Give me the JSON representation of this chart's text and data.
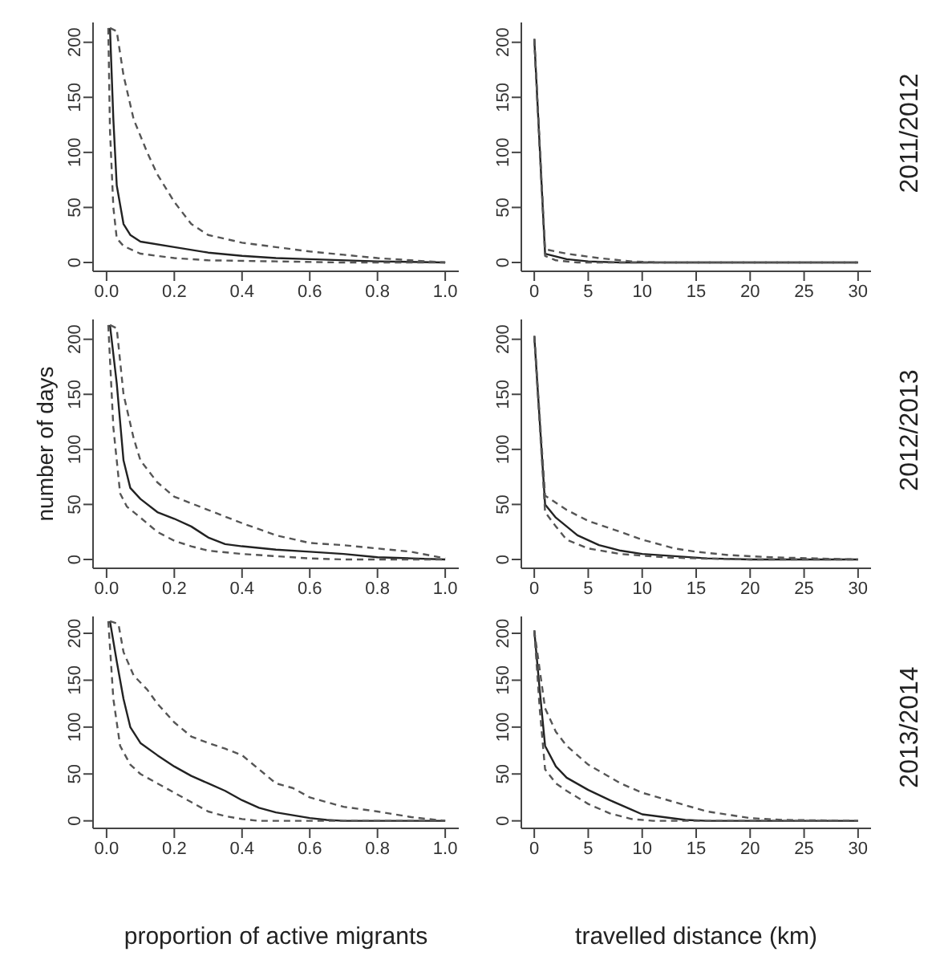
{
  "chart_data": [
    {
      "type": "line",
      "xlim": [
        -0.04,
        1.04
      ],
      "ylim": [
        -8,
        218
      ],
      "xticks": [
        "0.0",
        0.2,
        0.4,
        0.6,
        0.8,
        "1.0"
      ],
      "yticks": [
        0,
        50,
        100,
        150,
        200
      ],
      "series": [
        {
          "color": "#222222",
          "line_style": "solid",
          "x": [
            0.01,
            0.02,
            0.03,
            0.05,
            0.07,
            0.1,
            0.2,
            0.3,
            0.4,
            0.5,
            0.6,
            0.8,
            1.0
          ],
          "values": [
            213,
            130,
            70,
            35,
            25,
            19,
            14,
            9,
            6,
            4,
            3,
            1,
            0
          ]
        },
        {
          "color": "#555555",
          "line_style": "dashed",
          "x": [
            0.005,
            0.01,
            0.02,
            0.03,
            0.05,
            0.1,
            0.2,
            0.3,
            0.5,
            0.7,
            1.0
          ],
          "values": [
            213,
            120,
            50,
            22,
            15,
            8,
            4,
            2,
            1,
            0,
            0
          ]
        },
        {
          "color": "#555555",
          "line_style": "dashed",
          "x": [
            0.01,
            0.03,
            0.05,
            0.08,
            0.12,
            0.15,
            0.2,
            0.25,
            0.3,
            0.4,
            0.5,
            0.6,
            0.7,
            0.8,
            0.9,
            1.0
          ],
          "values": [
            213,
            210,
            170,
            130,
            100,
            80,
            55,
            35,
            25,
            18,
            14,
            10,
            7,
            4,
            2,
            0
          ]
        }
      ]
    },
    {
      "type": "line",
      "annotations": [
        "2011/2012"
      ],
      "xlim": [
        -1.2,
        31.2
      ],
      "ylim": [
        -8,
        218
      ],
      "xticks": [
        0,
        5,
        10,
        15,
        20,
        25,
        30
      ],
      "yticks": [
        0,
        50,
        100,
        150,
        200
      ],
      "series": [
        {
          "color": "#222222",
          "line_style": "solid",
          "x": [
            0,
            1,
            3,
            5,
            8,
            30
          ],
          "values": [
            203,
            8,
            3,
            1,
            0,
            0
          ]
        },
        {
          "color": "#555555",
          "line_style": "dashed",
          "x": [
            0,
            1,
            2,
            4,
            30
          ],
          "values": [
            203,
            6,
            2,
            0,
            0
          ]
        },
        {
          "color": "#555555",
          "line_style": "dashed",
          "x": [
            0,
            1,
            3,
            6,
            9,
            12,
            30
          ],
          "values": [
            203,
            12,
            8,
            4,
            1,
            0,
            0
          ]
        }
      ]
    },
    {
      "type": "line",
      "ylabel": "number of days",
      "xlim": [
        -0.04,
        1.04
      ],
      "ylim": [
        -8,
        218
      ],
      "xticks": [
        "0.0",
        0.2,
        0.4,
        0.6,
        0.8,
        "1.0"
      ],
      "yticks": [
        0,
        50,
        100,
        150,
        200
      ],
      "series": [
        {
          "color": "#222222",
          "line_style": "solid",
          "x": [
            0.01,
            0.03,
            0.05,
            0.07,
            0.1,
            0.15,
            0.2,
            0.25,
            0.3,
            0.35,
            0.4,
            0.5,
            0.6,
            0.7,
            0.8,
            0.9,
            1.0
          ],
          "values": [
            213,
            160,
            90,
            65,
            55,
            43,
            37,
            30,
            20,
            14,
            12,
            9,
            7,
            5,
            2,
            1,
            0
          ]
        },
        {
          "color": "#555555",
          "line_style": "dashed",
          "x": [
            0.005,
            0.02,
            0.04,
            0.06,
            0.1,
            0.15,
            0.2,
            0.25,
            0.3,
            0.4,
            0.5,
            0.6,
            0.7,
            1.0
          ],
          "values": [
            213,
            120,
            60,
            48,
            38,
            25,
            17,
            12,
            8,
            5,
            3,
            1,
            0,
            0
          ]
        },
        {
          "color": "#555555",
          "line_style": "dashed",
          "x": [
            0.01,
            0.03,
            0.05,
            0.08,
            0.1,
            0.15,
            0.2,
            0.3,
            0.4,
            0.5,
            0.6,
            0.7,
            0.8,
            0.9,
            1.0
          ],
          "values": [
            213,
            210,
            150,
            110,
            90,
            70,
            57,
            45,
            33,
            22,
            15,
            13,
            10,
            7,
            1
          ]
        }
      ]
    },
    {
      "type": "line",
      "annotations": [
        "2012/2013"
      ],
      "xlim": [
        -1.2,
        31.2
      ],
      "ylim": [
        -8,
        218
      ],
      "xticks": [
        0,
        5,
        10,
        15,
        20,
        25,
        30
      ],
      "yticks": [
        0,
        50,
        100,
        150,
        200
      ],
      "series": [
        {
          "color": "#222222",
          "line_style": "solid",
          "x": [
            0,
            1,
            2,
            4,
            6,
            8,
            10,
            13,
            16,
            20,
            30
          ],
          "values": [
            203,
            50,
            38,
            22,
            13,
            8,
            5,
            3,
            1,
            0,
            0
          ]
        },
        {
          "color": "#555555",
          "line_style": "dashed",
          "x": [
            0,
            1,
            2,
            3,
            5,
            8,
            12,
            15,
            20,
            30
          ],
          "values": [
            203,
            43,
            30,
            18,
            10,
            5,
            2,
            1,
            0,
            0
          ]
        },
        {
          "color": "#555555",
          "line_style": "dashed",
          "x": [
            0,
            1,
            3,
            5,
            8,
            10,
            13,
            15,
            18,
            22,
            26,
            30
          ],
          "values": [
            203,
            58,
            45,
            35,
            25,
            18,
            10,
            7,
            4,
            2,
            1,
            0
          ]
        }
      ]
    },
    {
      "type": "line",
      "xlabel": "proportion of active migrants",
      "xlim": [
        -0.04,
        1.04
      ],
      "ylim": [
        -8,
        218
      ],
      "xticks": [
        "0.0",
        0.2,
        0.4,
        0.6,
        0.8,
        "1.0"
      ],
      "yticks": [
        0,
        50,
        100,
        150,
        200
      ],
      "series": [
        {
          "color": "#222222",
          "line_style": "solid",
          "x": [
            0.01,
            0.03,
            0.05,
            0.07,
            0.1,
            0.15,
            0.2,
            0.25,
            0.3,
            0.35,
            0.4,
            0.45,
            0.5,
            0.55,
            0.6,
            0.65,
            0.7,
            1.0
          ],
          "values": [
            213,
            170,
            130,
            100,
            83,
            70,
            58,
            48,
            40,
            32,
            22,
            14,
            9,
            6,
            3,
            1,
            0,
            0
          ]
        },
        {
          "color": "#555555",
          "line_style": "dashed",
          "x": [
            0.005,
            0.02,
            0.04,
            0.07,
            0.1,
            0.15,
            0.2,
            0.25,
            0.3,
            0.35,
            0.4,
            0.45,
            1.0
          ],
          "values": [
            213,
            130,
            80,
            60,
            50,
            40,
            30,
            20,
            10,
            5,
            2,
            0,
            0
          ]
        },
        {
          "color": "#555555",
          "line_style": "dashed",
          "x": [
            0.01,
            0.035,
            0.05,
            0.08,
            0.12,
            0.15,
            0.2,
            0.25,
            0.3,
            0.35,
            0.4,
            0.45,
            0.5,
            0.55,
            0.6,
            0.7,
            0.8,
            0.9,
            1.0
          ],
          "values": [
            213,
            210,
            180,
            155,
            140,
            125,
            105,
            90,
            83,
            77,
            70,
            55,
            40,
            35,
            25,
            15,
            10,
            4,
            0
          ]
        }
      ]
    },
    {
      "type": "line",
      "xlabel": "travelled distance (km)",
      "annotations": [
        "2013/2014"
      ],
      "xlim": [
        -1.2,
        31.2
      ],
      "ylim": [
        -8,
        218
      ],
      "xticks": [
        0,
        5,
        10,
        15,
        20,
        25,
        30
      ],
      "yticks": [
        0,
        50,
        100,
        150,
        200
      ],
      "series": [
        {
          "color": "#222222",
          "line_style": "solid",
          "x": [
            0,
            0.5,
            1,
            2,
            3,
            5,
            7,
            9,
            10,
            12,
            14,
            16,
            30
          ],
          "values": [
            203,
            140,
            80,
            58,
            46,
            33,
            22,
            12,
            7,
            4,
            1,
            0,
            0
          ]
        },
        {
          "color": "#555555",
          "line_style": "dashed",
          "x": [
            0,
            0.5,
            1,
            2,
            3,
            5,
            7,
            9,
            11,
            28
          ],
          "values": [
            203,
            120,
            55,
            40,
            32,
            18,
            8,
            2,
            0,
            0
          ]
        },
        {
          "color": "#555555",
          "line_style": "dashed",
          "x": [
            0,
            1,
            2,
            3,
            5,
            8,
            10,
            13,
            16,
            20,
            23,
            30
          ],
          "values": [
            203,
            120,
            95,
            80,
            60,
            40,
            30,
            20,
            10,
            3,
            1,
            0
          ]
        }
      ]
    }
  ]
}
